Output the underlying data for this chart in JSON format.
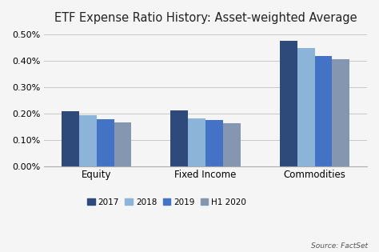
{
  "title": "ETF Expense Ratio History: Asset-weighted Average",
  "categories": [
    "Equity",
    "Fixed Income",
    "Commodities"
  ],
  "years": [
    "2017",
    "2018",
    "2019",
    "H1 2020"
  ],
  "values": {
    "Equity": [
      0.0021,
      0.00195,
      0.00178,
      0.00167
    ],
    "Fixed Income": [
      0.00212,
      0.0018,
      0.00176,
      0.00163
    ],
    "Commodities": [
      0.00476,
      0.00448,
      0.00418,
      0.00408
    ]
  },
  "bar_colors": [
    "#2e4a7a",
    "#8cb4d8",
    "#4472c4",
    "#8496b0"
  ],
  "ylim": [
    0,
    0.0052
  ],
  "yticks": [
    0.0,
    0.001,
    0.002,
    0.003,
    0.004,
    0.005
  ],
  "ytick_labels": [
    "0.00%",
    "0.10%",
    "0.20%",
    "0.30%",
    "0.40%",
    "0.50%"
  ],
  "source_text": "Source: FactSet",
  "background_color": "#f5f5f5",
  "plot_bg_color": "#f5f5f5",
  "grid_color": "#c8c8c8",
  "title_fontsize": 10.5,
  "label_fontsize": 8.5,
  "legend_fontsize": 7.5,
  "tick_fontsize": 8
}
